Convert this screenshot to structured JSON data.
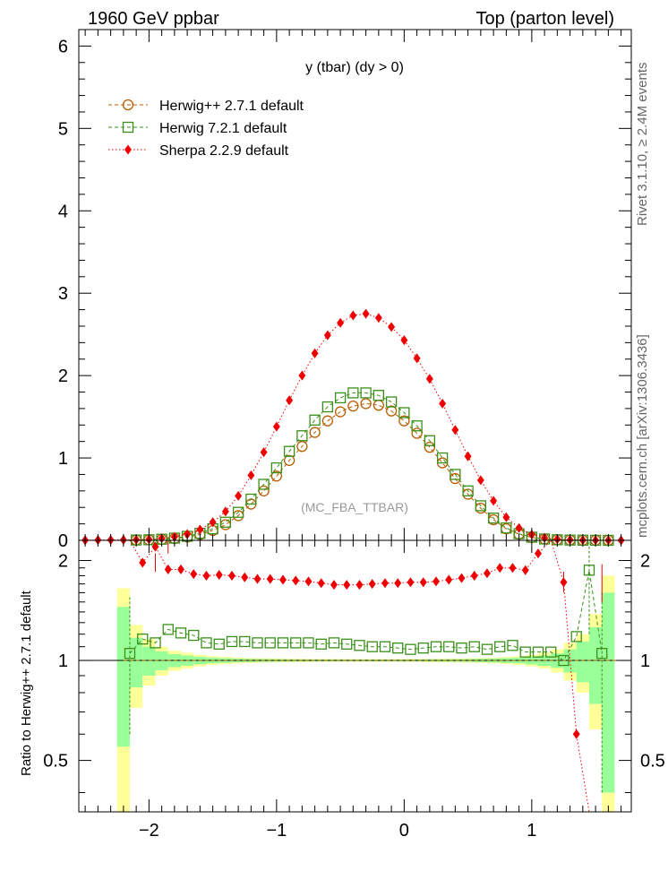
{
  "header": {
    "left": "1960 GeV ppbar",
    "right": "Top (parton level)"
  },
  "side": {
    "rivet": "Rivet 3.1.10, ≥ 2.4M events",
    "mcplots": "mcplots.cern.ch [arXiv:1306.3436]"
  },
  "chart_data": {
    "type": "line",
    "title": "y (tbar) (dy > 0)",
    "watermark": "(MC_FBA_TTBAR)",
    "xlabel": "",
    "ylabel_main": "",
    "ylabel_ratio": "Ratio to Herwig++ 2.7.1 default",
    "xlim": [
      -2.55,
      1.78
    ],
    "ylim_main": [
      0,
      6.2
    ],
    "ylim_ratio": [
      0.35,
      2.3
    ],
    "x_ticks": [
      -2,
      -1,
      0,
      1
    ],
    "x_tick_labels": [
      "−2",
      "−1",
      "0",
      "1"
    ],
    "y_ticks_main": [
      0,
      1,
      2,
      3,
      4,
      5,
      6
    ],
    "y_tick_labels_main": [
      "0",
      "1",
      "2",
      "3",
      "4",
      "5",
      "6"
    ],
    "y_ticks_ratio": [
      0.5,
      1,
      2
    ],
    "y_tick_labels_ratio": [
      "0.5",
      "1",
      "2"
    ],
    "x": [
      -2.5,
      -2.4,
      -2.3,
      -2.2,
      -2.1,
      -2.0,
      -1.9,
      -1.8,
      -1.7,
      -1.6,
      -1.5,
      -1.4,
      -1.3,
      -1.2,
      -1.1,
      -1.0,
      -0.9,
      -0.8,
      -0.7,
      -0.6,
      -0.5,
      -0.4,
      -0.3,
      -0.2,
      -0.1,
      0.0,
      0.1,
      0.2,
      0.3,
      0.4,
      0.5,
      0.6,
      0.7,
      0.8,
      0.9,
      1.0,
      1.1,
      1.2,
      1.3,
      1.4,
      1.5,
      1.6,
      1.7
    ],
    "series": [
      {
        "name": "Herwig++ 2.7.1 default",
        "color": "#b85c00",
        "marker": "circle",
        "linestyle": "dashed",
        "values": [
          0,
          0,
          0,
          0,
          0.004,
          0.006,
          0.012,
          0.022,
          0.04,
          0.07,
          0.12,
          0.19,
          0.3,
          0.44,
          0.6,
          0.78,
          0.97,
          1.14,
          1.31,
          1.45,
          1.56,
          1.63,
          1.66,
          1.64,
          1.57,
          1.45,
          1.3,
          1.13,
          0.94,
          0.75,
          0.56,
          0.39,
          0.25,
          0.14,
          0.075,
          0.035,
          0.016,
          0.007,
          0.003,
          0.001,
          0.0005,
          0.0002,
          0
        ]
      },
      {
        "name": "Herwig 7.2.1 default",
        "color": "#3a8f1a",
        "marker": "square",
        "linestyle": "dashed",
        "values": [
          0,
          0,
          0,
          0,
          0.004,
          0.007,
          0.014,
          0.027,
          0.049,
          0.085,
          0.14,
          0.22,
          0.34,
          0.5,
          0.68,
          0.88,
          1.08,
          1.27,
          1.46,
          1.62,
          1.73,
          1.79,
          1.79,
          1.76,
          1.68,
          1.55,
          1.39,
          1.21,
          1.0,
          0.8,
          0.6,
          0.42,
          0.27,
          0.15,
          0.081,
          0.038,
          0.017,
          0.007,
          0.0035,
          0.002,
          0.001,
          0.0002,
          0
        ]
      },
      {
        "name": "Sherpa 2.2.9 default",
        "color": "#ee0000",
        "marker": "diamond",
        "linestyle": "dotted",
        "values": [
          0.002,
          0.004,
          0.005,
          0.006,
          0.008,
          0.012,
          0.024,
          0.042,
          0.075,
          0.13,
          0.22,
          0.35,
          0.54,
          0.79,
          1.07,
          1.38,
          1.7,
          2.0,
          2.27,
          2.49,
          2.64,
          2.73,
          2.75,
          2.7,
          2.59,
          2.43,
          2.21,
          1.96,
          1.66,
          1.34,
          1.02,
          0.73,
          0.48,
          0.28,
          0.15,
          0.07,
          0.03,
          0.013,
          0.006,
          0.003,
          0.0016,
          0.0005,
          0.0002
        ]
      }
    ],
    "ratio": {
      "x": [
        -2.15,
        -2.05,
        -1.95,
        -1.85,
        -1.75,
        -1.65,
        -1.55,
        -1.45,
        -1.35,
        -1.25,
        -1.15,
        -1.05,
        -0.95,
        -0.85,
        -0.75,
        -0.65,
        -0.55,
        -0.45,
        -0.35,
        -0.25,
        -0.15,
        -0.05,
        0.05,
        0.15,
        0.25,
        0.35,
        0.45,
        0.55,
        0.65,
        0.75,
        0.85,
        0.95,
        1.05,
        1.15,
        1.25,
        1.35,
        1.45,
        1.55
      ],
      "herwig7": [
        1.05,
        1.16,
        1.13,
        1.24,
        1.21,
        1.19,
        1.13,
        1.12,
        1.14,
        1.14,
        1.13,
        1.13,
        1.13,
        1.13,
        1.13,
        1.12,
        1.13,
        1.12,
        1.11,
        1.1,
        1.1,
        1.09,
        1.08,
        1.09,
        1.1,
        1.1,
        1.09,
        1.1,
        1.08,
        1.1,
        1.11,
        1.06,
        1.06,
        1.06,
        1.0,
        1.18,
        1.87,
        1.05
      ],
      "sherpa": [
        2.5,
        1.97,
        2.2,
        1.88,
        1.88,
        1.82,
        1.8,
        1.81,
        1.8,
        1.78,
        1.76,
        1.76,
        1.75,
        1.74,
        1.73,
        1.71,
        1.69,
        1.69,
        1.69,
        1.7,
        1.71,
        1.71,
        1.72,
        1.72,
        1.73,
        1.75,
        1.77,
        1.8,
        1.83,
        1.9,
        1.9,
        1.87,
        2.1,
        2.5,
        1.72,
        0.6,
        0.3,
        0.3
      ],
      "band_x": [
        -2.2,
        -2.1,
        -2.0,
        -1.9,
        -1.8,
        -1.7,
        -1.6,
        -1.5,
        -1.4,
        -1.3,
        -1.2,
        -1.1,
        -1.0,
        -0.9,
        -0.8,
        -0.7,
        -0.6,
        -0.5,
        -0.4,
        -0.3,
        -0.2,
        -0.1,
        0.0,
        0.1,
        0.2,
        0.3,
        0.4,
        0.5,
        0.6,
        0.7,
        0.8,
        0.9,
        1.0,
        1.1,
        1.2,
        1.3,
        1.4,
        1.5,
        1.6,
        1.7
      ],
      "yellow_halfwidth": [
        0.65,
        0.28,
        0.16,
        0.1,
        0.07,
        0.055,
        0.04,
        0.03,
        0.025,
        0.02,
        0.017,
        0.015,
        0.013,
        0.012,
        0.011,
        0.01,
        0.01,
        0.009,
        0.009,
        0.009,
        0.009,
        0.009,
        0.01,
        0.01,
        0.011,
        0.012,
        0.013,
        0.015,
        0.017,
        0.02,
        0.025,
        0.03,
        0.04,
        0.055,
        0.08,
        0.13,
        0.2,
        0.38,
        0.8
      ],
      "green_halfwidth": [
        0.45,
        0.17,
        0.1,
        0.065,
        0.045,
        0.035,
        0.026,
        0.02,
        0.016,
        0.013,
        0.011,
        0.01,
        0.009,
        0.008,
        0.007,
        0.007,
        0.006,
        0.006,
        0.006,
        0.006,
        0.006,
        0.006,
        0.007,
        0.007,
        0.008,
        0.008,
        0.009,
        0.01,
        0.012,
        0.014,
        0.017,
        0.02,
        0.027,
        0.036,
        0.05,
        0.08,
        0.14,
        0.26,
        0.6
      ]
    }
  }
}
